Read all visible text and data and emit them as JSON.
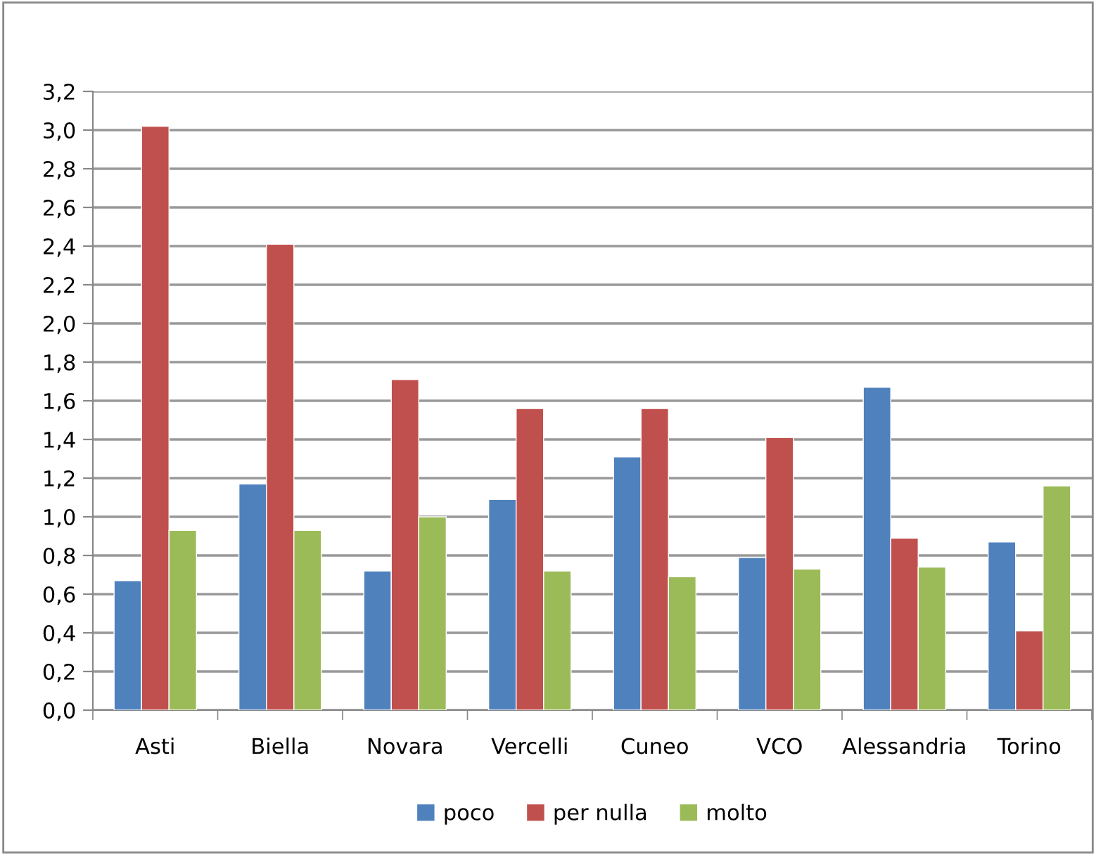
{
  "chart_data": {
    "type": "bar",
    "categories": [
      "Asti",
      "Biella",
      "Novara",
      "Vercelli",
      "Cuneo",
      "VCO",
      "Alessandria",
      "Torino"
    ],
    "series": [
      {
        "name": "poco",
        "color": "#4f81bd",
        "values": [
          0.67,
          1.17,
          0.72,
          1.09,
          1.31,
          0.79,
          1.67,
          0.87
        ]
      },
      {
        "name": "per nulla",
        "color": "#c0504d",
        "values": [
          3.02,
          2.41,
          1.71,
          1.56,
          1.56,
          1.41,
          0.89,
          0.41
        ]
      },
      {
        "name": "molto",
        "color": "#9bbb59",
        "values": [
          0.93,
          0.93,
          1.0,
          0.72,
          0.69,
          0.73,
          0.74,
          1.16
        ]
      }
    ],
    "ylim": [
      0,
      3.2
    ],
    "yticks": [
      {
        "value": 0,
        "label": "0,0"
      },
      {
        "value": 0.2,
        "label": "0,2"
      },
      {
        "value": 0.4,
        "label": "0,4"
      },
      {
        "value": 0.6,
        "label": "0,6"
      },
      {
        "value": 0.8,
        "label": "0,8"
      },
      {
        "value": 1.0,
        "label": "1,0"
      },
      {
        "value": 1.2,
        "label": "1,2"
      },
      {
        "value": 1.4,
        "label": "1,4"
      },
      {
        "value": 1.6,
        "label": "1,6"
      },
      {
        "value": 1.8,
        "label": "1,8"
      },
      {
        "value": 2.0,
        "label": "2,0"
      },
      {
        "value": 2.2,
        "label": "2,2"
      },
      {
        "value": 2.4,
        "label": "2,4"
      },
      {
        "value": 2.6,
        "label": "2,6"
      },
      {
        "value": 2.8,
        "label": "2,8"
      },
      {
        "value": 3.0,
        "label": "3,0"
      },
      {
        "value": 3.2,
        "label": "3,2"
      }
    ],
    "grid": "y",
    "legend": "bottom"
  }
}
